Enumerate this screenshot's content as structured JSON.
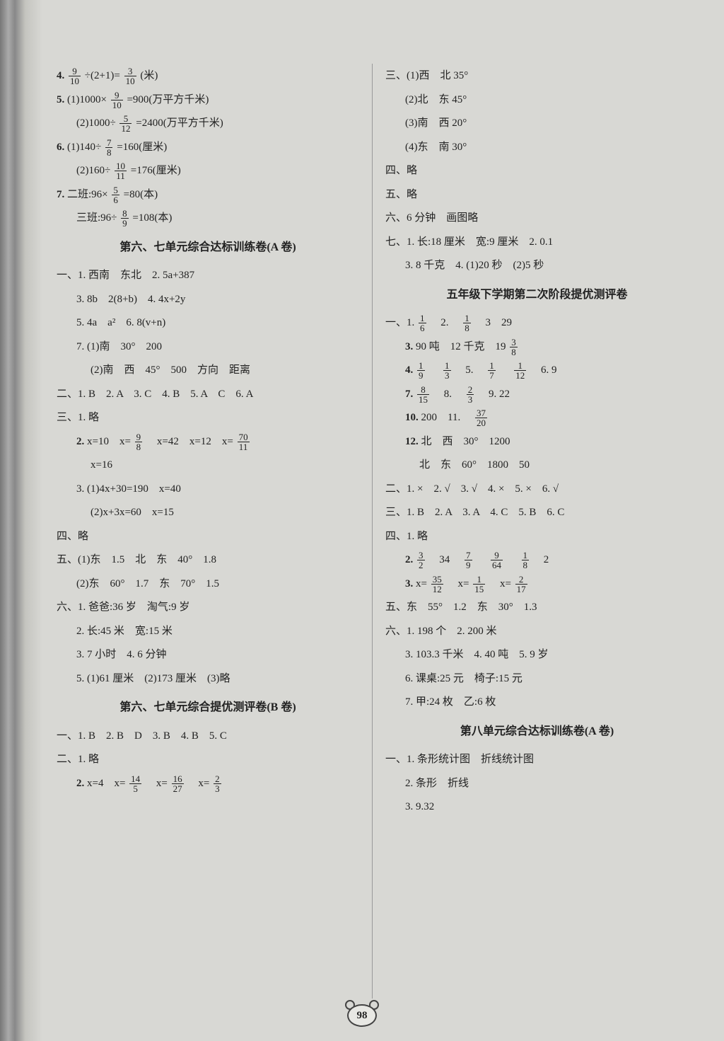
{
  "page_number": "98",
  "left": {
    "l4": {
      "prefix": "4.",
      "f1n": "9",
      "f1d": "10",
      "mid": "÷(2+1)=",
      "f2n": "3",
      "f2d": "10",
      "suffix": "(米)"
    },
    "l5a": {
      "prefix": "5.",
      "a": "(1)1000×",
      "fn": "9",
      "fd": "10",
      "suffix": "=900(万平方千米)"
    },
    "l5b": {
      "a": "(2)1000÷",
      "fn": "5",
      "fd": "12",
      "suffix": "=2400(万平方千米)"
    },
    "l6a": {
      "prefix": "6.",
      "a": "(1)140÷",
      "fn": "7",
      "fd": "8",
      "suffix": "=160(厘米)"
    },
    "l6b": {
      "a": "(2)160÷",
      "fn": "10",
      "fd": "11",
      "suffix": "=176(厘米)"
    },
    "l7a": {
      "prefix": "7.",
      "a": "二班:96×",
      "fn": "5",
      "fd": "6",
      "suffix": "=80(本)"
    },
    "l7b": {
      "a": "三班:96÷",
      "fn": "8",
      "fd": "9",
      "suffix": "=108(本)"
    },
    "titleA": "第六、七单元综合达标训练卷(A 卷)",
    "s1_1": {
      "pre": "一、1.",
      "t": "西南　东北　2. 5a+387"
    },
    "s1_3": {
      "t": "3. 8b　2(8+b)　4. 4x+2y"
    },
    "s1_5": {
      "t": "5. 4a　a²　6. 8(v+n)"
    },
    "s1_7a": {
      "t": "7. (1)南　30°　200"
    },
    "s1_7b": {
      "t": "(2)南　西　45°　500　方向　距离"
    },
    "s2": {
      "pre": "二、",
      "t": "1. B　2. A　3. C　4. B　5. A　C　6. A"
    },
    "s3_1": {
      "pre": "三、1.",
      "t": "略"
    },
    "s3_2a": {
      "pre": "2.",
      "a": "x=10　x=",
      "fn": "9",
      "fd": "8",
      "mid": "　x=42　x=12　x=",
      "f2n": "70",
      "f2d": "11"
    },
    "s3_2b": {
      "t": "x=16"
    },
    "s3_3a": {
      "t": "3. (1)4x+30=190　x=40"
    },
    "s3_3b": {
      "t": "(2)x+3x=60　x=15"
    },
    "s4": {
      "pre": "四、",
      "t": "略"
    },
    "s5a": {
      "pre": "五、",
      "t": "(1)东　1.5　北　东　40°　1.8"
    },
    "s5b": {
      "t": "(2)东　60°　1.7　东　70°　1.5"
    },
    "s6_1": {
      "pre": "六、1.",
      "t": "爸爸:36 岁　淘气:9 岁"
    },
    "s6_2": {
      "t": "2. 长:45 米　宽:15 米"
    },
    "s6_3": {
      "t": "3. 7 小时　4. 6 分钟"
    },
    "s6_5": {
      "t": "5. (1)61 厘米　(2)173 厘米　(3)略"
    },
    "titleB": "第六、七单元综合提优测评卷(B 卷)",
    "bs1": {
      "pre": "一、",
      "t": "1. B　2. B　D　3. B　4. B　5. C"
    },
    "bs2_1": {
      "pre": "二、1.",
      "t": "略"
    },
    "bs2_2": {
      "pre": "2.",
      "a": "x=4　x=",
      "f1n": "14",
      "f1d": "5",
      "b": "　x=",
      "f2n": "16",
      "f2d": "27",
      "c": "　x=",
      "f3n": "2",
      "f3d": "3"
    }
  },
  "right": {
    "s3_1": {
      "pre": "三、",
      "t": "(1)西　北 35°"
    },
    "s3_2": {
      "t": "(2)北　东 45°"
    },
    "s3_3": {
      "t": "(3)南　西 20°"
    },
    "s3_4": {
      "t": "(4)东　南 30°"
    },
    "s4": {
      "pre": "四、",
      "t": "略"
    },
    "s5": {
      "pre": "五、",
      "t": "略"
    },
    "s6": {
      "pre": "六、",
      "t": "6 分钟　画图略"
    },
    "s7_1": {
      "pre": "七、1.",
      "t": "长:18 厘米　宽:9 厘米　2. 0.1"
    },
    "s7_3": {
      "t": "3. 8 千克　4. (1)20 秒　(2)5 秒"
    },
    "titleC": "五年级下学期第二次阶段提优测评卷",
    "c1_1": {
      "pre": "一、1.",
      "f1n": "1",
      "f1d": "6",
      "mid": "　2.　",
      "f2n": "1",
      "f2d": "8",
      "suf": "　3　29"
    },
    "c1_3": {
      "pre": "3.",
      "a": "90 吨　12 千克　19",
      "fn": "3",
      "fd": "8"
    },
    "c1_4": {
      "pre": "4.",
      "f1n": "1",
      "f1d": "9",
      "g1": "　",
      "f2n": "1",
      "f2d": "3",
      "mid": "　5.　",
      "f3n": "1",
      "f3d": "7",
      "g2": "　",
      "f4n": "1",
      "f4d": "12",
      "suf": "　6. 9"
    },
    "c1_7": {
      "pre": "7.",
      "f1n": "8",
      "f1d": "15",
      "mid": "　8.　",
      "f2n": "2",
      "f2d": "3",
      "suf": "　9. 22"
    },
    "c1_10": {
      "pre": "10.",
      "a": "200　11.　",
      "fn": "37",
      "fd": "20"
    },
    "c1_12a": {
      "pre": "12.",
      "t": "北　西　30°　1200"
    },
    "c1_12b": {
      "t": "北　东　60°　1800　50"
    },
    "c2": {
      "pre": "二、",
      "t": "1. ×　2. √　3. √　4. ×　5. ×　6. √"
    },
    "c3": {
      "pre": "三、",
      "t": "1. B　2. A　3. A　4. C　5. B　6. C"
    },
    "c4_1": {
      "pre": "四、1.",
      "t": "略"
    },
    "c4_2": {
      "pre": "2.",
      "f1n": "3",
      "f1d": "2",
      "a": "　34　",
      "f2n": "7",
      "f2d": "9",
      "b": "　",
      "f3n": "9",
      "f3d": "64",
      "c": "　",
      "f4n": "1",
      "f4d": "8",
      "d": "　2"
    },
    "c4_3": {
      "pre": "3.",
      "a": "x=",
      "f1n": "35",
      "f1d": "12",
      "b": "　x=",
      "f2n": "1",
      "f2d": "15",
      "c": "　x=",
      "f3n": "2",
      "f3d": "17"
    },
    "c5": {
      "pre": "五、",
      "t": "东　55°　1.2　东　30°　1.3"
    },
    "c6_1": {
      "pre": "六、1.",
      "t": "198 个　2. 200 米"
    },
    "c6_3": {
      "t": "3. 103.3 千米　4. 40 吨　5. 9 岁"
    },
    "c6_6": {
      "t": "6. 课桌:25 元　椅子:15 元"
    },
    "c6_7": {
      "t": "7. 甲:24 枚　乙:6 枚"
    },
    "titleD": "第八单元综合达标训练卷(A 卷)",
    "d1_1": {
      "pre": "一、1.",
      "t": "条形统计图　折线统计图"
    },
    "d1_2": {
      "t": "2. 条形　折线"
    },
    "d1_3": {
      "t": "3. 9.32"
    }
  }
}
